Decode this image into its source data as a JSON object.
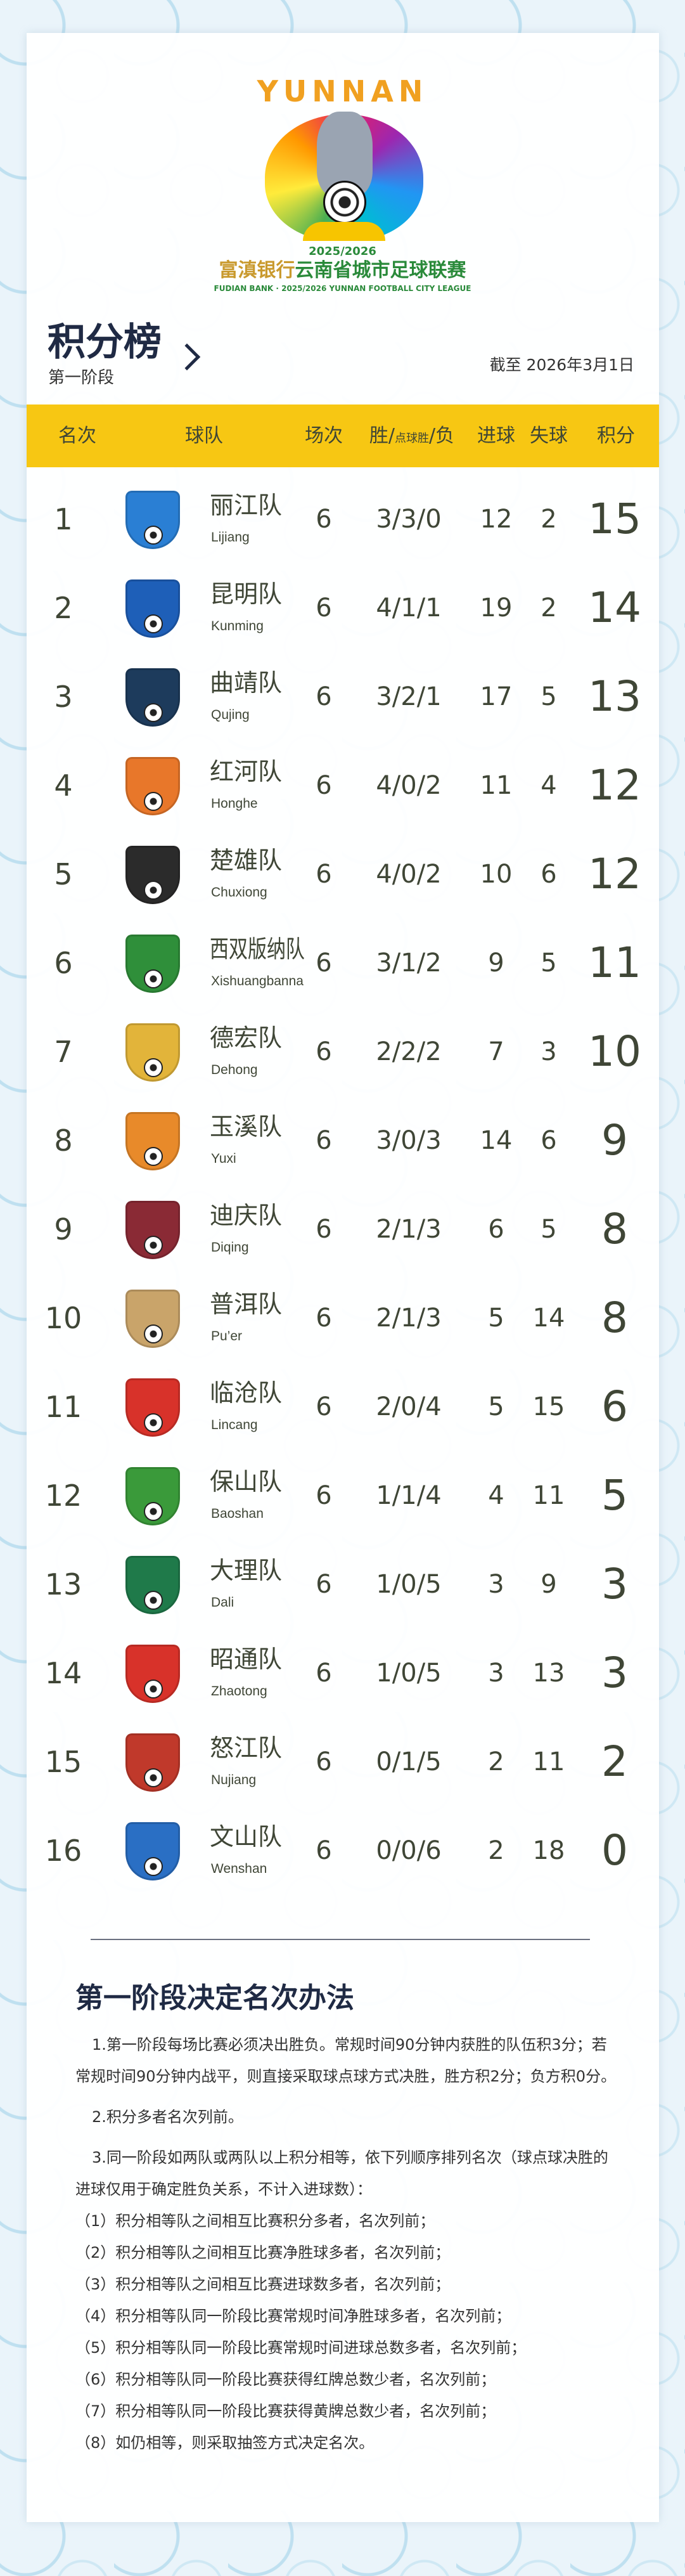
{
  "logo": {
    "wordmark": "YUNNAN",
    "season": "2025/2026",
    "bank": "富滇银行",
    "league": "云南省城市足球联赛",
    "english": "FUDIAN BANK · 2025/2026 YUNNAN FOOTBALL CITY LEAGUE"
  },
  "header": {
    "title": "积分榜",
    "stage": "第一阶段",
    "as_of": "截至 2026年3月1日"
  },
  "table": {
    "columns": {
      "rank": "名次",
      "team": "球队",
      "played": "场次",
      "wdl_a": "胜/",
      "wdl_b": "点球胜",
      "wdl_c": "/负",
      "gf": "进球",
      "ga": "失球",
      "pts": "积分"
    },
    "accent": "#f7c713",
    "rows": [
      {
        "rank": "1",
        "name": "丽江队",
        "pinyin": "Lijiang",
        "played": "6",
        "wdl": "3/3/0",
        "gf": "12",
        "ga": "2",
        "pts": "15",
        "crest_color": "#2a7fd4"
      },
      {
        "rank": "2",
        "name": "昆明队",
        "pinyin": "Kunming",
        "played": "6",
        "wdl": "4/1/1",
        "gf": "19",
        "ga": "2",
        "pts": "14",
        "crest_color": "#1e5fb8"
      },
      {
        "rank": "3",
        "name": "曲靖队",
        "pinyin": "Qujing",
        "played": "6",
        "wdl": "3/2/1",
        "gf": "17",
        "ga": "5",
        "pts": "13",
        "crest_color": "#1d3b5c"
      },
      {
        "rank": "4",
        "name": "红河队",
        "pinyin": "Honghe",
        "played": "6",
        "wdl": "4/0/2",
        "gf": "11",
        "ga": "4",
        "pts": "12",
        "crest_color": "#e8772a"
      },
      {
        "rank": "5",
        "name": "楚雄队",
        "pinyin": "Chuxiong",
        "played": "6",
        "wdl": "4/0/2",
        "gf": "10",
        "ga": "6",
        "pts": "12",
        "crest_color": "#2b2b2b"
      },
      {
        "rank": "6",
        "name": "西双版纳队",
        "pinyin": "Xishuangbanna",
        "played": "6",
        "wdl": "3/1/2",
        "gf": "9",
        "ga": "5",
        "pts": "11",
        "crest_color": "#2f8f3a"
      },
      {
        "rank": "7",
        "name": "德宏队",
        "pinyin": "Dehong",
        "played": "6",
        "wdl": "2/2/2",
        "gf": "7",
        "ga": "3",
        "pts": "10",
        "crest_color": "#e2b43a"
      },
      {
        "rank": "8",
        "name": "玉溪队",
        "pinyin": "Yuxi",
        "played": "6",
        "wdl": "3/0/3",
        "gf": "14",
        "ga": "6",
        "pts": "9",
        "crest_color": "#e88a2a"
      },
      {
        "rank": "9",
        "name": "迪庆队",
        "pinyin": "Diqing",
        "played": "6",
        "wdl": "2/1/3",
        "gf": "6",
        "ga": "5",
        "pts": "8",
        "crest_color": "#8a2a35"
      },
      {
        "rank": "10",
        "name": "普洱队",
        "pinyin": "Pu’er",
        "played": "6",
        "wdl": "2/1/3",
        "gf": "5",
        "ga": "14",
        "pts": "8",
        "crest_color": "#c9a46a"
      },
      {
        "rank": "11",
        "name": "临沧队",
        "pinyin": "Lincang",
        "played": "6",
        "wdl": "2/0/4",
        "gf": "5",
        "ga": "15",
        "pts": "6",
        "crest_color": "#d8322a"
      },
      {
        "rank": "12",
        "name": "保山队",
        "pinyin": "Baoshan",
        "played": "6",
        "wdl": "1/1/4",
        "gf": "4",
        "ga": "11",
        "pts": "5",
        "crest_color": "#3a9a3a"
      },
      {
        "rank": "13",
        "name": "大理队",
        "pinyin": "Dali",
        "played": "6",
        "wdl": "1/0/5",
        "gf": "3",
        "ga": "9",
        "pts": "3",
        "crest_color": "#1f7a4a"
      },
      {
        "rank": "14",
        "name": "昭通队",
        "pinyin": "Zhaotong",
        "played": "6",
        "wdl": "1/0/5",
        "gf": "3",
        "ga": "13",
        "pts": "3",
        "crest_color": "#d8322a"
      },
      {
        "rank": "15",
        "name": "怒江队",
        "pinyin": "Nujiang",
        "played": "6",
        "wdl": "0/1/5",
        "gf": "2",
        "ga": "11",
        "pts": "2",
        "crest_color": "#c0392b"
      },
      {
        "rank": "16",
        "name": "文山队",
        "pinyin": "Wenshan",
        "played": "6",
        "wdl": "0/0/6",
        "gf": "2",
        "ga": "18",
        "pts": "0",
        "crest_color": "#2a6fc4"
      }
    ]
  },
  "rules": {
    "title": "第一阶段决定名次办法",
    "paragraphs": [
      "1.第一阶段每场比赛必须决出胜负。常规时间90分钟内获胜的队伍积3分；若常规时间90分钟内战平，则直接采取球点球方式决胜，胜方积2分；负方积0分。",
      "2.积分多者名次列前。",
      "3.同一阶段如两队或两队以上积分相等，依下列顺序排列名次（球点球决胜的进球仅用于确定胜负关系，不计入进球数）："
    ],
    "items": [
      "（1）积分相等队之间相互比赛积分多者，名次列前；",
      "（2）积分相等队之间相互比赛净胜球多者，名次列前；",
      "（3）积分相等队之间相互比赛进球数多者，名次列前；",
      "（4）积分相等队同一阶段比赛常规时间净胜球多者，名次列前；",
      "（5）积分相等队同一阶段比赛常规时间进球总数多者，名次列前；",
      "（6）积分相等队同一阶段比赛获得红牌总数少者，名次列前；",
      "（7）积分相等队同一阶段比赛获得黄牌总数少者，名次列前；",
      "（8）如仍相等，则采取抽签方式决定名次。"
    ]
  }
}
